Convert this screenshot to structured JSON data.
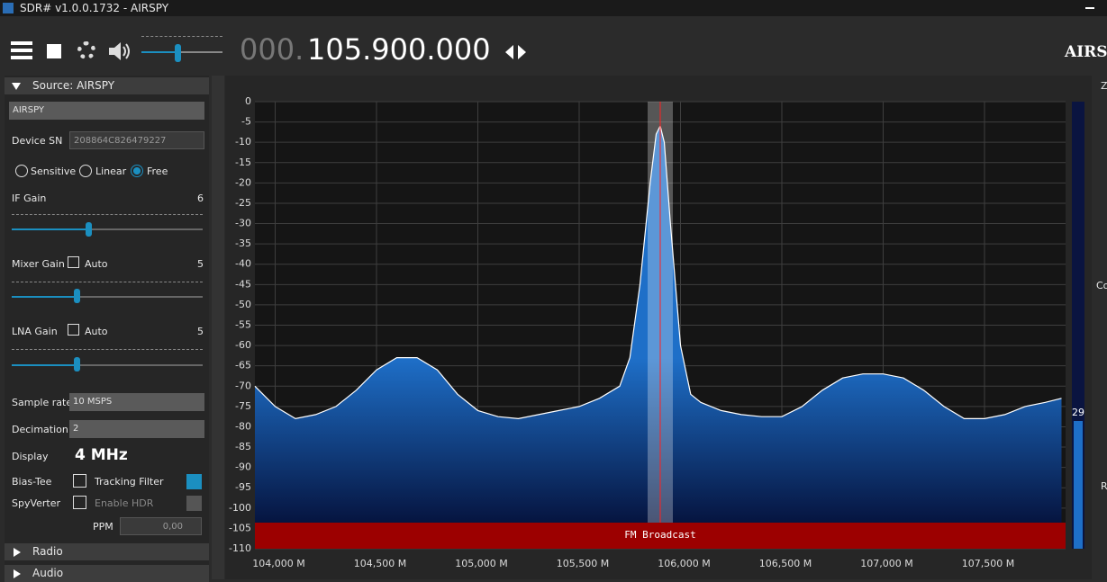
{
  "window": {
    "title": "SDR# v1.0.0.1732 - AIRSPY"
  },
  "toolbar": {
    "frequency_prefix": "000.",
    "frequency": "105.900.000",
    "logo": "AIRSP"
  },
  "source_panel": {
    "header": "Source: AIRSPY",
    "device": "AIRSPY",
    "device_sn_label": "Device SN",
    "device_sn": "208864C826479227",
    "modes": [
      "Sensitive",
      "Linear",
      "Free"
    ],
    "if_gain_label": "IF Gain",
    "if_gain": "6",
    "mixer_gain_label": "Mixer Gain",
    "mixer_auto": "Auto",
    "mixer_gain": "5",
    "lna_gain_label": "LNA Gain",
    "lna_auto": "Auto",
    "lna_gain": "5",
    "sample_rate_label": "Sample rate",
    "sample_rate": "10 MSPS",
    "decimation_label": "Decimation",
    "decimation": "2",
    "display_label": "Display",
    "display": "4 MHz",
    "bias_tee": "Bias-Tee",
    "tracking_filter": "Tracking Filter",
    "spyverter": "SpyVerter",
    "enable_hdr": "Enable HDR",
    "ppm_label": "PPM",
    "ppm": "0,00"
  },
  "collapsed_panels": [
    "Radio",
    "Audio"
  ],
  "right_panel_fragments": [
    "Zo",
    "Co",
    "R"
  ],
  "chart_data": {
    "type": "line",
    "color": "#ffffff",
    "fill": "#1e6fc8",
    "grid": true,
    "band_label": "FM Broadcast",
    "level_meter": "29",
    "x": [
      103900,
      104000,
      104100,
      104200,
      104300,
      104400,
      104500,
      104600,
      104700,
      104800,
      104900,
      105000,
      105100,
      105200,
      105300,
      105400,
      105500,
      105600,
      105700,
      105750,
      105800,
      105850,
      105880,
      105900,
      105920,
      105950,
      106000,
      106050,
      106100,
      106200,
      106300,
      106400,
      106500,
      106600,
      106700,
      106800,
      106900,
      107000,
      107100,
      107200,
      107300,
      107400,
      107500,
      107600,
      107700,
      107800,
      107880
    ],
    "values": [
      -70,
      -75,
      -78,
      -77,
      -75,
      -71,
      -66,
      -63,
      -63,
      -66,
      -72,
      -76,
      -77.5,
      -78,
      -77,
      -76,
      -75,
      -73,
      -70,
      -63,
      -45,
      -20,
      -8,
      -6,
      -10,
      -30,
      -60,
      -72,
      -74,
      -76,
      -77,
      -77.5,
      -77.5,
      -75,
      -71,
      -68,
      -67,
      -67,
      -68,
      -71,
      -75,
      -78,
      -78,
      -77,
      -75,
      -74,
      -73
    ],
    "xlim": [
      103900,
      107900
    ],
    "ylim": [
      -110,
      0
    ],
    "xticks": [
      {
        "value": 104000,
        "label": "104,000 M"
      },
      {
        "value": 104500,
        "label": "104,500 M"
      },
      {
        "value": 105000,
        "label": "105,000 M"
      },
      {
        "value": 105500,
        "label": "105,500 M"
      },
      {
        "value": 106000,
        "label": "106,000 M"
      },
      {
        "value": 106500,
        "label": "106,500 M"
      },
      {
        "value": 107000,
        "label": "107,000 M"
      },
      {
        "value": 107500,
        "label": "107,500 M"
      }
    ],
    "yticks": [
      0,
      -5,
      -10,
      -15,
      -20,
      -25,
      -30,
      -35,
      -40,
      -45,
      -50,
      -55,
      -60,
      -65,
      -70,
      -75,
      -80,
      -85,
      -90,
      -95,
      -100,
      -105,
      -110
    ]
  }
}
